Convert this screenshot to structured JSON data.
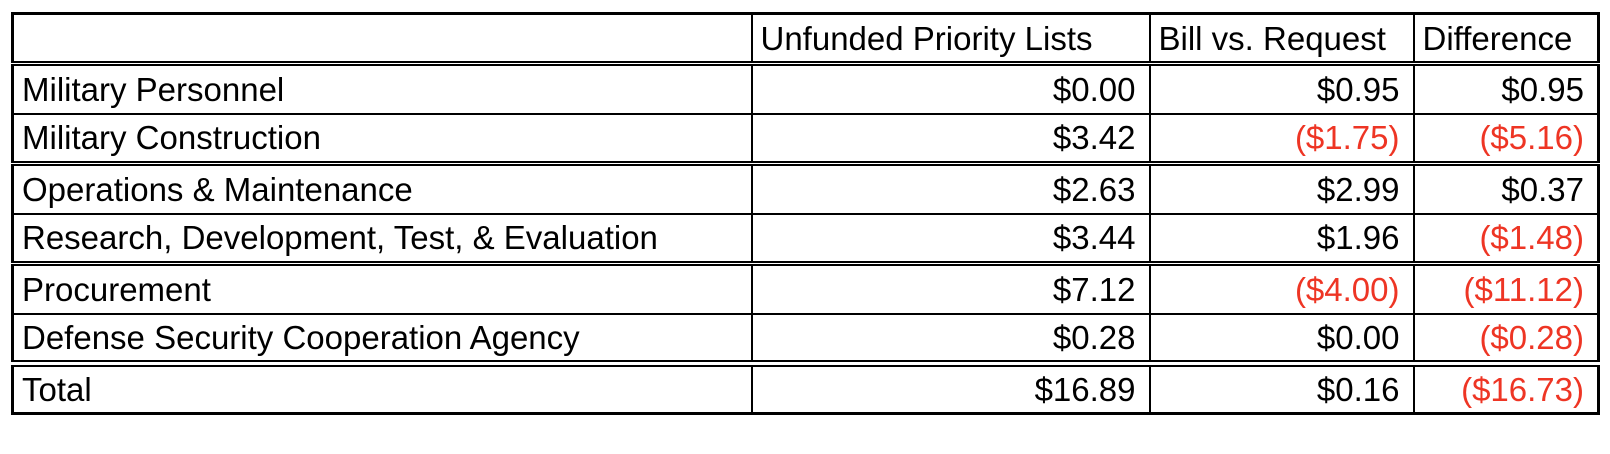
{
  "colors": {
    "negative_value": "#ee3524",
    "text": "#000000",
    "border": "#000000",
    "background": "#ffffff"
  },
  "table": {
    "headers": {
      "row_label": "",
      "unfunded_priority_lists": "Unfunded Priority Lists",
      "bill_vs_request": "Bill vs. Request",
      "difference": "Difference"
    },
    "rows": [
      {
        "label": "Military Personnel",
        "upl": "$0.00",
        "bill": "$0.95",
        "diff": "$0.95"
      },
      {
        "label": "Military Construction",
        "upl": "$3.42",
        "bill": "($1.75)",
        "diff": "($5.16)"
      },
      {
        "label": "Operations & Maintenance",
        "upl": "$2.63",
        "bill": "$2.99",
        "diff": "$0.37"
      },
      {
        "label": "Research, Development, Test, & Evaluation",
        "upl": "$3.44",
        "bill": "$1.96",
        "diff": "($1.48)"
      },
      {
        "label": "Procurement",
        "upl": "$7.12",
        "bill": "($4.00)",
        "diff": "($11.12)"
      },
      {
        "label": "Defense Security Cooperation Agency",
        "upl": "$0.28",
        "bill": "$0.00",
        "diff": "($0.28)"
      }
    ],
    "total": {
      "label": "Total",
      "upl": "$16.89",
      "bill": "$0.16",
      "diff": "($16.73)"
    }
  },
  "chart_data": {
    "type": "table",
    "columns": [
      "",
      "Unfunded Priority Lists",
      "Bill vs. Request",
      "Difference"
    ],
    "rows": [
      [
        "Military Personnel",
        0.0,
        0.95,
        0.95
      ],
      [
        "Military Construction",
        3.42,
        -1.75,
        -5.16
      ],
      [
        "Operations & Maintenance",
        2.63,
        2.99,
        0.37
      ],
      [
        "Research, Development, Test, & Evaluation",
        3.44,
        1.96,
        -1.48
      ],
      [
        "Procurement",
        7.12,
        -4.0,
        -11.12
      ],
      [
        "Defense Security Cooperation Agency",
        0.28,
        0.0,
        -0.28
      ],
      [
        "Total",
        16.89,
        0.16,
        -16.73
      ]
    ],
    "value_format": "currency, negatives in red parentheses",
    "legend_position": "none",
    "grid": true
  }
}
